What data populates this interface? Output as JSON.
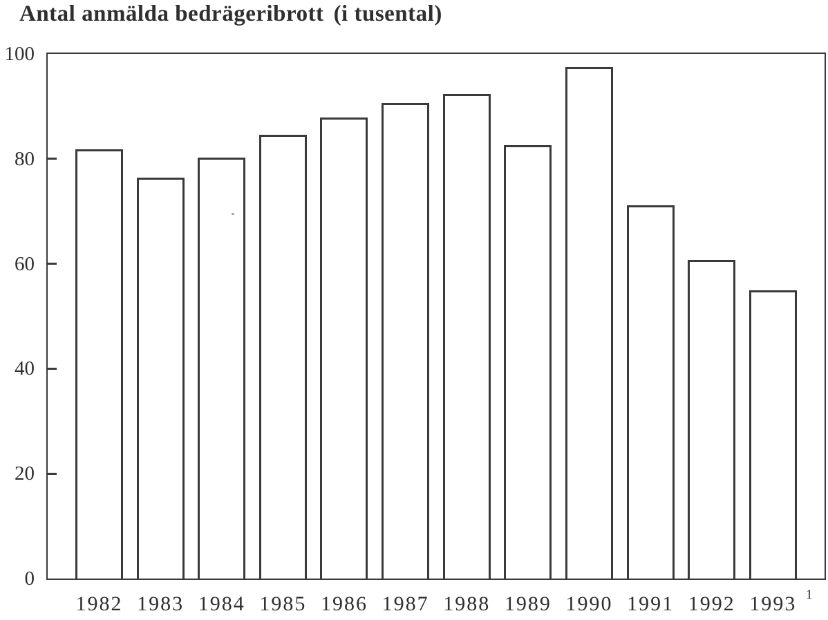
{
  "title": {
    "main": "Antal anmälda bedrägeribrott",
    "unit": "(i tusental)"
  },
  "footnote_marker": "1",
  "colors": {
    "ink": "#3a3a3a",
    "text": "#2f2f2f",
    "background": "#ffffff",
    "bar_fill": "#ffffff"
  },
  "chart_data": {
    "type": "bar",
    "title": "Antal anmälda bedrägeribrott (i tusental)",
    "categories": [
      "1982",
      "1983",
      "1984",
      "1985",
      "1986",
      "1987",
      "1988",
      "1989",
      "1990",
      "1991",
      "1992",
      "1993"
    ],
    "values": [
      81.8,
      76.4,
      80.2,
      84.6,
      87.9,
      90.6,
      92.4,
      82.6,
      97.5,
      71.2,
      60.8,
      55.0
    ],
    "xlabel": "",
    "ylabel": "Antal anmälda bedrägeribrott (i tusental)",
    "ylim": [
      0,
      100
    ],
    "yticks": [
      0,
      20,
      40,
      60,
      80,
      100
    ],
    "grid": false,
    "legend": null,
    "bar_fill": "white",
    "last_category_footnote_marker": "1"
  }
}
